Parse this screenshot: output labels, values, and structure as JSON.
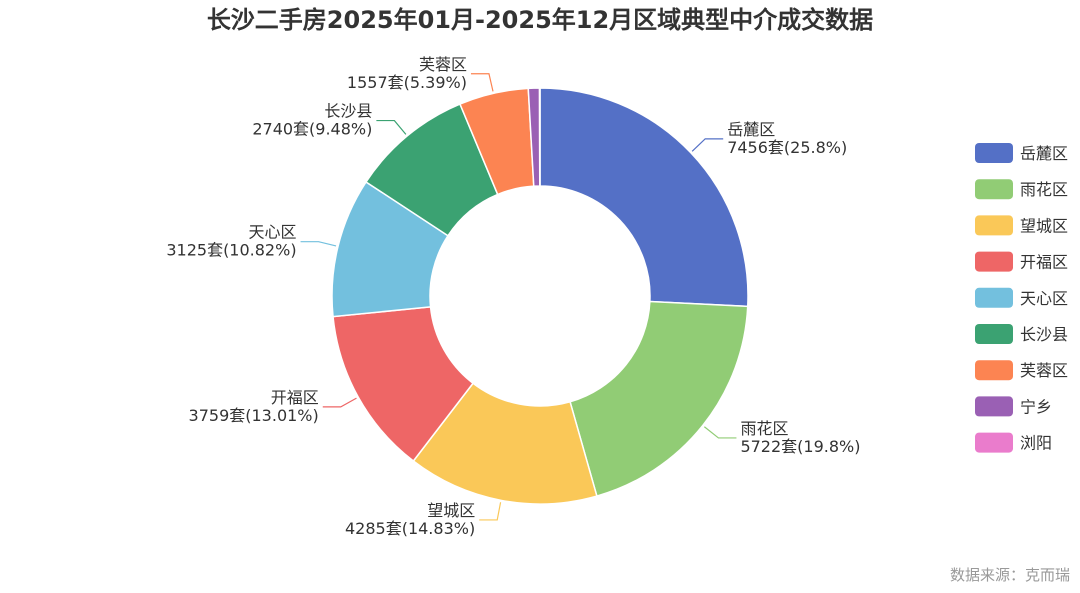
{
  "chart_data": {
    "type": "pie",
    "title": "长沙二手房2025年01月-2025年12月区域典型中介成交数据",
    "source": "数据来源：克而瑞",
    "legend_position": "right",
    "slices": [
      {
        "name": "岳麓区",
        "value": 7456,
        "label": "7456套(25.8%)",
        "color": "#5470c6"
      },
      {
        "name": "雨花区",
        "value": 5722,
        "label": "5722套(19.8%)",
        "color": "#91cc75"
      },
      {
        "name": "望城区",
        "value": 4285,
        "label": "4285套(14.83%)",
        "color": "#fac858"
      },
      {
        "name": "开福区",
        "value": 3759,
        "label": "3759套(13.01%)",
        "color": "#ee6666"
      },
      {
        "name": "天心区",
        "value": 3125,
        "label": "3125套(10.82%)",
        "color": "#73c0de"
      },
      {
        "name": "长沙县",
        "value": 2740,
        "label": "2740套(9.48%)",
        "color": "#3ba272"
      },
      {
        "name": "芙蓉区",
        "value": 1557,
        "label": "1557套(5.39%)",
        "color": "#fc8452"
      },
      {
        "name": "宁乡",
        "value": 250,
        "label": "",
        "color": "#9a60b4"
      },
      {
        "name": "浏阳",
        "value": 10,
        "label": "",
        "color": "#ea7ccc"
      }
    ]
  }
}
